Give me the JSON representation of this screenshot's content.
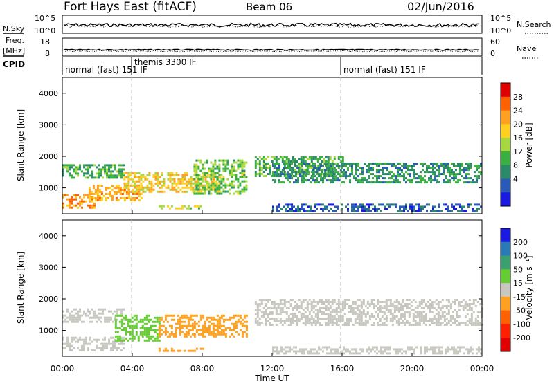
{
  "header": {
    "station": "Fort Hays East (fitACF)",
    "beam": "Beam 06",
    "date": "02/Jun/2016"
  },
  "panels": {
    "nsky_label": "N.Sky",
    "nsky_ticks": [
      "10^5",
      "10^0"
    ],
    "nsearch_label": "N.Search",
    "nsearch_ticks": [
      "10^5",
      "10^0"
    ],
    "freq_label_1": "Freq.",
    "freq_label_2": "[MHz]",
    "freq_ticks": [
      "18",
      "8"
    ],
    "nave_label": "Nave",
    "nave_ticks": [
      "60",
      "0"
    ],
    "cpid_label": "CPID",
    "cpid_segments": [
      {
        "label": "normal (fast) 151 IF",
        "start_hour": 0
      },
      {
        "label": "themis 3300 IF",
        "start_hour": 4
      },
      {
        "label": "normal (fast) 151 IF",
        "start_hour": 16
      }
    ]
  },
  "chart_data": [
    {
      "type": "heatmap",
      "parameter": "Power",
      "ylabel": "Slant Range [km]",
      "xlabel": "Time UT",
      "xlim_hours": [
        0,
        24
      ],
      "ylim": [
        180,
        4500
      ],
      "x_ticks": [
        "00:00",
        "04:00",
        "08:00",
        "12:00",
        "16:00",
        "20:00",
        "00:00"
      ],
      "y_ticks": [
        1000,
        2000,
        3000,
        4000
      ],
      "colorbar": {
        "label": "Power [dB]",
        "ticks": [
          "28",
          "24",
          "20",
          "16",
          "12",
          "8",
          "4"
        ],
        "colors": [
          "#e00000",
          "#ff6000",
          "#ffa020",
          "#ffd020",
          "#a8d840",
          "#3ab040",
          "#2a8a6a",
          "#2a5ab8",
          "#1a1ae0"
        ]
      },
      "scatter_regions": [
        {
          "t0": 0.0,
          "t1": 1.8,
          "r0": 400,
          "r1": 800,
          "level": 24
        },
        {
          "t0": 0.0,
          "t1": 3.5,
          "r0": 1300,
          "r1": 1750,
          "level": 12
        },
        {
          "t0": 1.5,
          "t1": 4.5,
          "r0": 600,
          "r1": 1100,
          "level": 22
        },
        {
          "t0": 3.5,
          "t1": 9.0,
          "r0": 900,
          "r1": 1500,
          "level": 20
        },
        {
          "t0": 5.5,
          "t1": 8.0,
          "r0": 320,
          "r1": 450,
          "level": 18
        },
        {
          "t0": 7.5,
          "t1": 10.5,
          "r0": 800,
          "r1": 1900,
          "level": 14
        },
        {
          "t0": 11.0,
          "t1": 16.0,
          "r0": 1400,
          "r1": 2000,
          "level": 12
        },
        {
          "t0": 12.0,
          "t1": 24.0,
          "r0": 1200,
          "r1": 1800,
          "level": 10
        },
        {
          "t0": 12.0,
          "t1": 24.0,
          "r0": 250,
          "r1": 500,
          "level": 6
        }
      ]
    },
    {
      "type": "heatmap",
      "parameter": "Velocity",
      "ylabel": "Slant Range [km]",
      "xlabel": "Time UT",
      "xlim_hours": [
        0,
        24
      ],
      "ylim": [
        180,
        4500
      ],
      "x_ticks": [
        "00:00",
        "04:00",
        "08:00",
        "12:00",
        "16:00",
        "20:00",
        "00:00"
      ],
      "y_ticks": [
        1000,
        2000,
        3000,
        4000
      ],
      "colorbar": {
        "label": "Velocity [m s⁻¹]",
        "ticks": [
          "200",
          "100",
          "50",
          "15",
          "-15",
          "-50",
          "-100",
          "-200"
        ],
        "colors": [
          "#1a1ae0",
          "#2a7ab8",
          "#3aa070",
          "#66cc33",
          "#c8c8c0",
          "#ffa020",
          "#ff6000",
          "#ff2000",
          "#e00000"
        ]
      },
      "scatter_regions": [
        {
          "t0": 0.0,
          "t1": 3.5,
          "r0": 400,
          "r1": 800,
          "velocity": 0
        },
        {
          "t0": 0.0,
          "t1": 3.5,
          "r0": 1300,
          "r1": 1700,
          "velocity": 0
        },
        {
          "t0": 3.0,
          "t1": 5.5,
          "r0": 700,
          "r1": 1500,
          "velocity": 40
        },
        {
          "t0": 5.5,
          "t1": 10.5,
          "r0": 800,
          "r1": 1500,
          "velocity": -30
        },
        {
          "t0": 5.5,
          "t1": 8.0,
          "r0": 320,
          "r1": 450,
          "velocity": -30
        },
        {
          "t0": 11.0,
          "t1": 24.0,
          "r0": 1200,
          "r1": 2000,
          "velocity": 0
        },
        {
          "t0": 12.0,
          "t1": 24.0,
          "r0": 250,
          "r1": 500,
          "velocity": 0
        }
      ]
    }
  ]
}
